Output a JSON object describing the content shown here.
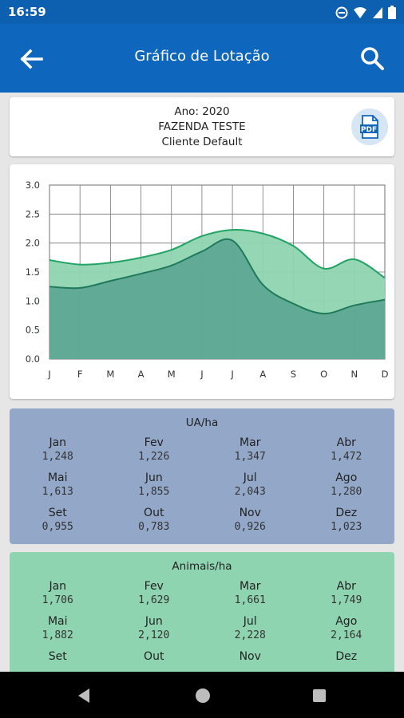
{
  "status": {
    "time": "16:59"
  },
  "appbar": {
    "title": "Gráfico de Lotação"
  },
  "info": {
    "year_line": "Ano: 2020",
    "farm": "FAZENDA TESTE",
    "client": "Cliente Default",
    "pdf_label": "PDF"
  },
  "chart_data": {
    "type": "area",
    "categories": [
      "J",
      "F",
      "M",
      "A",
      "M",
      "J",
      "J",
      "A",
      "S",
      "O",
      "N",
      "D"
    ],
    "ylim": [
      0,
      3.0
    ],
    "yticks": [
      "0.0",
      "0.5",
      "1.0",
      "1.5",
      "2.0",
      "2.5",
      "3.0"
    ],
    "grid": true,
    "series": [
      {
        "values": [
          1.706,
          1.629,
          1.661,
          1.749,
          1.882,
          2.12,
          2.228,
          2.164,
          1.95,
          1.56,
          1.72,
          1.4
        ],
        "color": "#8fd4b0"
      },
      {
        "values": [
          1.248,
          1.226,
          1.347,
          1.472,
          1.613,
          1.855,
          2.043,
          1.28,
          0.955,
          0.783,
          0.926,
          1.023
        ],
        "color": "#5ea894"
      }
    ]
  },
  "ua": {
    "title": "UA/ha",
    "rows": [
      [
        {
          "m": "Jan",
          "v": "1,248"
        },
        {
          "m": "Fev",
          "v": "1,226"
        },
        {
          "m": "Mar",
          "v": "1,347"
        },
        {
          "m": "Abr",
          "v": "1,472"
        }
      ],
      [
        {
          "m": "Mai",
          "v": "1,613"
        },
        {
          "m": "Jun",
          "v": "1,855"
        },
        {
          "m": "Jul",
          "v": "2,043"
        },
        {
          "m": "Ago",
          "v": "1,280"
        }
      ],
      [
        {
          "m": "Set",
          "v": "0,955"
        },
        {
          "m": "Out",
          "v": "0,783"
        },
        {
          "m": "Nov",
          "v": "0,926"
        },
        {
          "m": "Dez",
          "v": "1,023"
        }
      ]
    ]
  },
  "animais": {
    "title": "Animais/ha",
    "rows": [
      [
        {
          "m": "Jan",
          "v": "1,706"
        },
        {
          "m": "Fev",
          "v": "1,629"
        },
        {
          "m": "Mar",
          "v": "1,661"
        },
        {
          "m": "Abr",
          "v": "1,749"
        }
      ],
      [
        {
          "m": "Mai",
          "v": "1,882"
        },
        {
          "m": "Jun",
          "v": "2,120"
        },
        {
          "m": "Jul",
          "v": "2,228"
        },
        {
          "m": "Ago",
          "v": "2,164"
        }
      ],
      [
        {
          "m": "Set",
          "v": ""
        },
        {
          "m": "Out",
          "v": ""
        },
        {
          "m": "Nov",
          "v": ""
        },
        {
          "m": "Dez",
          "v": ""
        }
      ]
    ]
  },
  "colors": {
    "primary": "#0f66bd",
    "ua_bg": "#93a8c9",
    "animais_bg": "#8fd4b0"
  }
}
